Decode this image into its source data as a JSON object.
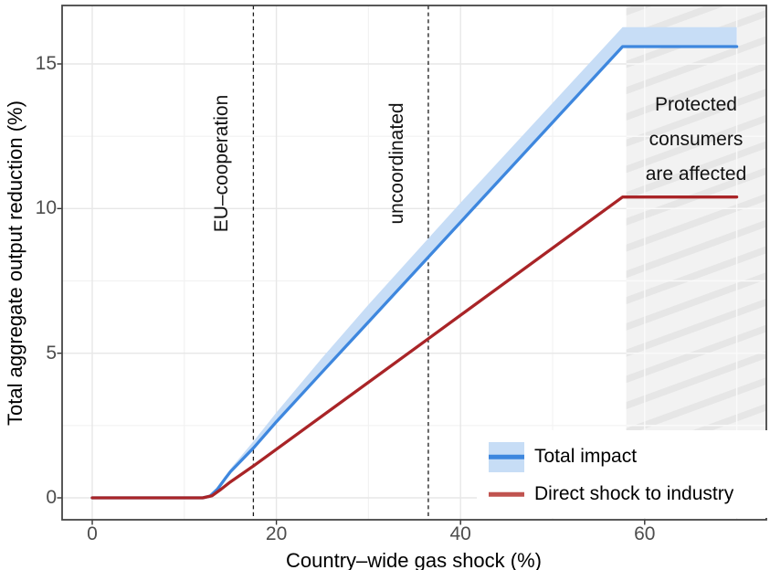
{
  "figure": {
    "background": "#ffffff"
  },
  "chart_data": {
    "type": "line",
    "title": "",
    "xlabel": "Country–wide gas shock (%)",
    "ylabel": "Total aggregate output reduction (%)",
    "xlim": [
      -3.3,
      73.2
    ],
    "ylim": [
      -0.8,
      17.0
    ],
    "x_ticks": [
      0,
      20,
      40,
      60
    ],
    "y_ticks": [
      0,
      5,
      10,
      15
    ],
    "x_minor_gridlines": [
      10,
      30,
      50,
      70
    ],
    "y_minor_gridlines": [
      2.5,
      7.5,
      12.5
    ],
    "grid": true,
    "series": [
      {
        "name": "Total impact",
        "color": "#3e87de",
        "band_color": "#c7ddf6",
        "x": [
          0,
          12,
          12.8,
          13.6,
          14.4,
          15,
          17.5,
          20,
          25,
          30,
          36.5,
          40,
          50,
          57.6,
          70
        ],
        "y": [
          0,
          0,
          0.06,
          0.3,
          0.65,
          0.9,
          1.72,
          2.63,
          4.36,
          6.08,
          8.32,
          9.53,
          12.98,
          15.6,
          15.6
        ],
        "band_upper": [
          0,
          0,
          0.06,
          0.32,
          0.72,
          1.0,
          1.95,
          2.95,
          4.85,
          6.68,
          8.97,
          10.2,
          13.65,
          16.27,
          16.27
        ]
      },
      {
        "name": "Direct shock to industry",
        "color": "#a92427",
        "x": [
          0,
          12,
          13,
          14,
          15,
          17.5,
          36.5,
          57.6,
          70
        ],
        "y": [
          0,
          0,
          0.07,
          0.3,
          0.55,
          1.1,
          5.5,
          10.4,
          10.4
        ]
      }
    ],
    "vlines": [
      {
        "x": 17.5,
        "label": "EU–cooperation",
        "style": "dashed",
        "color": "#1a1a1a"
      },
      {
        "x": 36.5,
        "label": "uncoordinated",
        "style": "dashed",
        "color": "#1a1a1a"
      }
    ],
    "shaded_region": {
      "x_start": 58,
      "x_end": 73.2,
      "label_lines": [
        "Protected",
        "consumers",
        "are affected"
      ],
      "fill": "#f2f2f2",
      "stripe_color": "#e6e6e6"
    },
    "legend": {
      "position": "bottom-right",
      "key_colors": {
        "total_impact_line": "#3e87de",
        "total_impact_band": "#c7ddf6",
        "direct_shock_line": "#c0534f"
      }
    },
    "style_colors": {
      "grid_major": "#e7e7e7",
      "grid_minor": "#f2f2f2",
      "grid_over_region": "#fafafa",
      "panel_border": "#454545",
      "tick_mark": "#333333",
      "tick_label": "#4d4d4d"
    }
  }
}
